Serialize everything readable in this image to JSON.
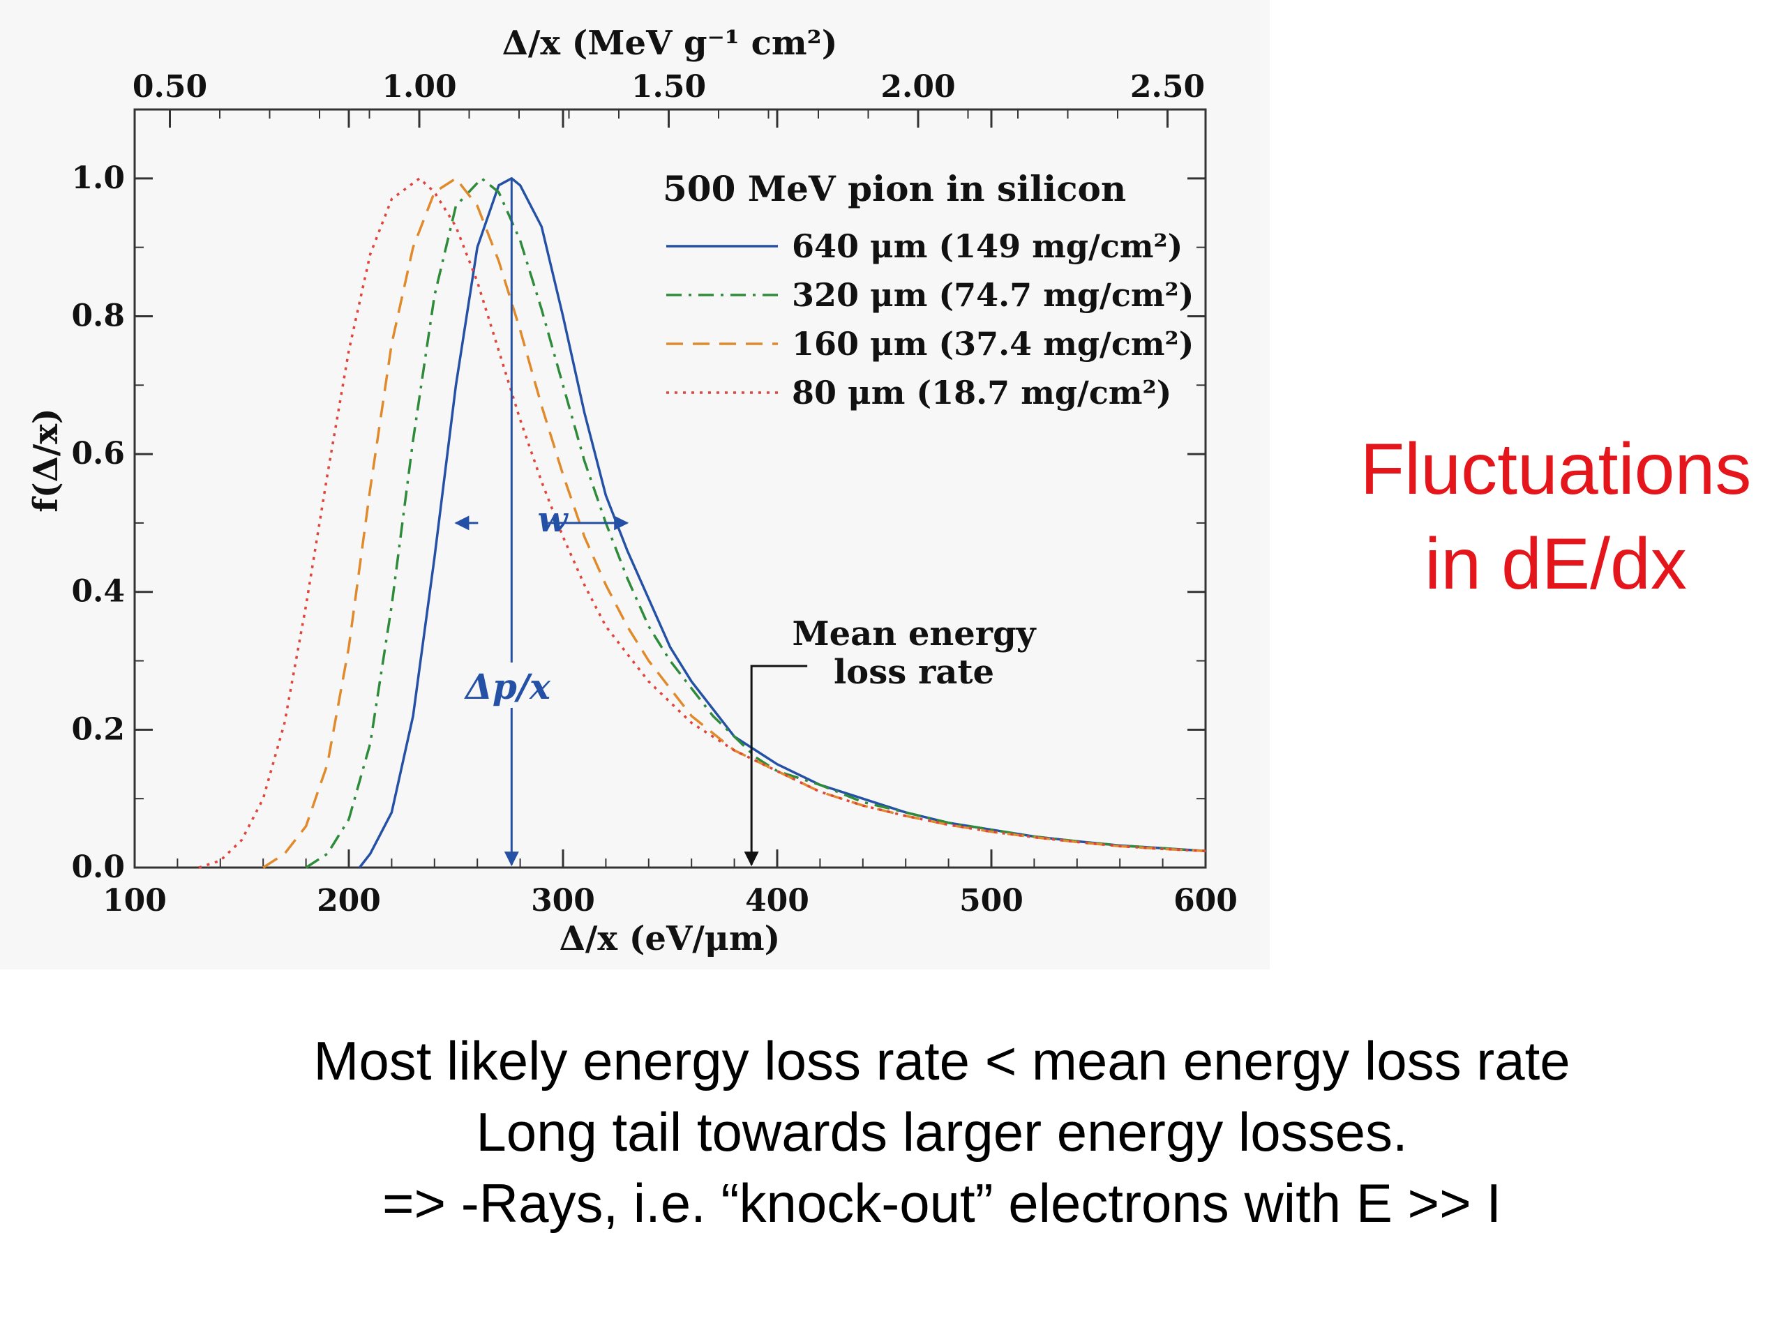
{
  "side_title": {
    "line1": "Fluctuations",
    "line2": "in dE/dx"
  },
  "caption": {
    "line1": "Most likely energy loss rate < mean energy loss rate",
    "line2": "Long tail towards larger energy losses.",
    "line3": "=>  -Rays, i.e. “knock-out” electrons with E >> I"
  },
  "chart_data": {
    "type": "line",
    "title": "500 MeV pion in silicon",
    "xlabel": "Δ/x   (eV/μm)",
    "ylabel": "f(Δ/x)",
    "top_xlabel": "Δ/x   (MeV g⁻¹ cm²)",
    "xlim": [
      100,
      600
    ],
    "ylim": [
      0,
      1.1
    ],
    "x_ticks": [
      "100",
      "200",
      "300",
      "400",
      "500",
      "600"
    ],
    "y_ticks": [
      "0.0",
      "0.2",
      "0.4",
      "0.6",
      "0.8",
      "1.0"
    ],
    "top_ticks": [
      "0.50",
      "1.00",
      "1.50",
      "2.00",
      "2.50"
    ],
    "legend_position": "top-right",
    "grid": false,
    "series": [
      {
        "name": "640 μm (149 mg/cm²)",
        "color": "#2451a6",
        "style": "solid",
        "x": [
          205,
          210,
          220,
          230,
          240,
          250,
          260,
          270,
          276,
          280,
          290,
          300,
          310,
          320,
          330,
          340,
          350,
          360,
          370,
          380,
          390,
          400,
          420,
          440,
          460,
          480,
          500,
          520,
          540,
          560,
          580,
          600
        ],
        "y": [
          0.0,
          0.02,
          0.08,
          0.22,
          0.45,
          0.7,
          0.9,
          0.99,
          1.0,
          0.99,
          0.93,
          0.8,
          0.66,
          0.54,
          0.46,
          0.39,
          0.32,
          0.27,
          0.23,
          0.19,
          0.17,
          0.15,
          0.12,
          0.1,
          0.08,
          0.065,
          0.055,
          0.045,
          0.038,
          0.032,
          0.028,
          0.024
        ]
      },
      {
        "name": "320 μm (74.7 mg/cm²)",
        "color": "#2e8b3a",
        "style": "dashdot",
        "x": [
          180,
          190,
          200,
          210,
          220,
          230,
          240,
          250,
          262,
          270,
          280,
          290,
          300,
          310,
          320,
          330,
          340,
          350,
          360,
          370,
          380,
          390,
          400,
          420,
          440,
          460,
          480,
          500,
          520,
          540,
          560,
          580,
          600
        ],
        "y": [
          0.0,
          0.02,
          0.07,
          0.18,
          0.38,
          0.62,
          0.83,
          0.96,
          1.0,
          0.98,
          0.91,
          0.81,
          0.7,
          0.59,
          0.5,
          0.42,
          0.35,
          0.3,
          0.26,
          0.22,
          0.19,
          0.16,
          0.14,
          0.12,
          0.095,
          0.08,
          0.065,
          0.055,
          0.045,
          0.038,
          0.032,
          0.028,
          0.024
        ]
      },
      {
        "name": "160 μm (37.4 mg/cm²)",
        "color": "#e08a2c",
        "style": "dashed",
        "x": [
          160,
          170,
          180,
          190,
          200,
          210,
          220,
          230,
          240,
          250,
          260,
          270,
          280,
          290,
          300,
          310,
          320,
          330,
          340,
          350,
          360,
          380,
          400,
          420,
          440,
          460,
          480,
          500,
          520,
          540,
          560,
          580,
          600
        ],
        "y": [
          0.0,
          0.02,
          0.06,
          0.15,
          0.32,
          0.55,
          0.76,
          0.9,
          0.98,
          1.0,
          0.96,
          0.88,
          0.78,
          0.67,
          0.57,
          0.48,
          0.41,
          0.35,
          0.3,
          0.26,
          0.22,
          0.17,
          0.14,
          0.11,
          0.09,
          0.075,
          0.062,
          0.052,
          0.044,
          0.037,
          0.031,
          0.027,
          0.024
        ]
      },
      {
        "name": "80 μm (18.7 mg/cm²)",
        "color": "#e0443a",
        "style": "dotted",
        "x": [
          130,
          140,
          150,
          160,
          170,
          180,
          190,
          200,
          210,
          220,
          233,
          240,
          250,
          260,
          270,
          280,
          290,
          300,
          310,
          320,
          330,
          340,
          360,
          380,
          400,
          420,
          440,
          460,
          480,
          500,
          520,
          540,
          560,
          580,
          600
        ],
        "y": [
          0.0,
          0.01,
          0.04,
          0.1,
          0.21,
          0.38,
          0.57,
          0.75,
          0.89,
          0.97,
          1.0,
          0.98,
          0.93,
          0.85,
          0.75,
          0.65,
          0.56,
          0.48,
          0.41,
          0.35,
          0.31,
          0.27,
          0.21,
          0.17,
          0.14,
          0.11,
          0.09,
          0.075,
          0.062,
          0.052,
          0.044,
          0.037,
          0.031,
          0.027,
          0.024
        ]
      }
    ],
    "annotations": {
      "width_label": "w",
      "width_span": [
        250,
        330
      ],
      "width_y": 0.5,
      "peak_label": "Δp/x",
      "peak_x": 276,
      "mean_label_line1": "Mean energy",
      "mean_label_line2": "loss rate",
      "mean_x": 388
    }
  }
}
